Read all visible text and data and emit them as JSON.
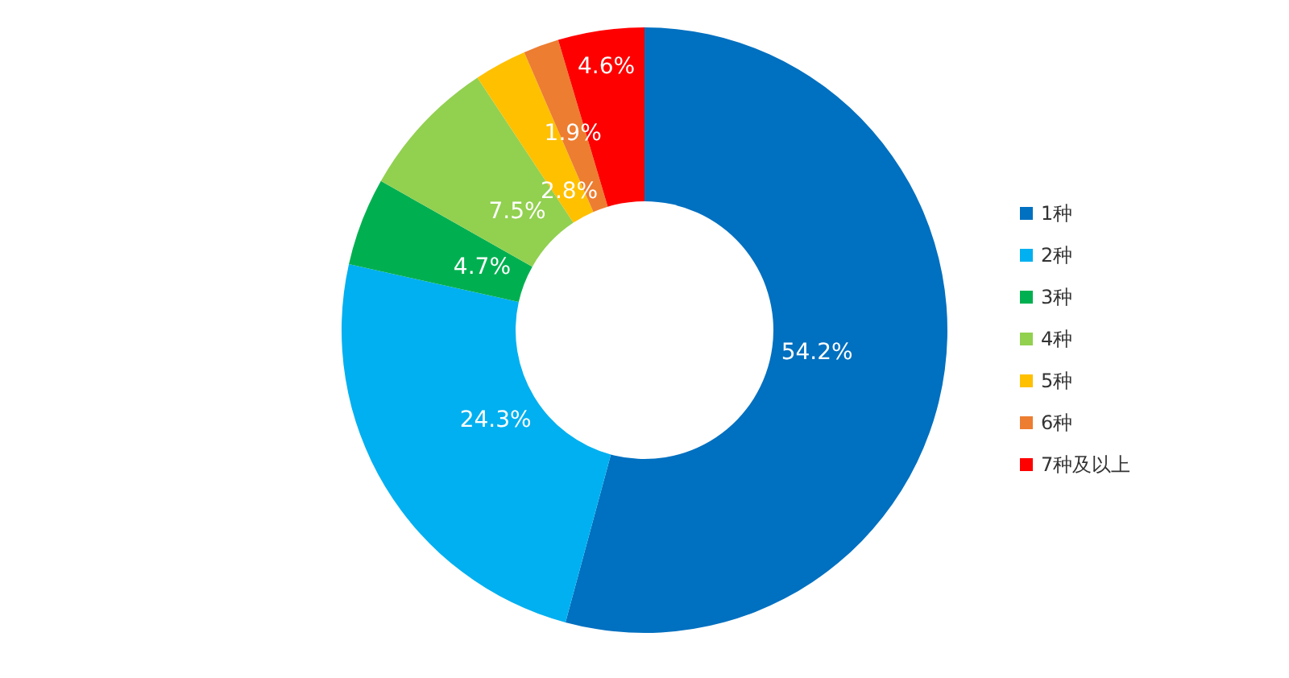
{
  "chart_data": {
    "type": "donut",
    "categories": [
      "1种",
      "2种",
      "3种",
      "4种",
      "5种",
      "6种",
      "7种及以上"
    ],
    "values": [
      54.2,
      24.3,
      4.7,
      7.5,
      2.8,
      1.9,
      4.6
    ],
    "colors": [
      "#0070c0",
      "#00b0f0",
      "#00b050",
      "#92d050",
      "#ffc000",
      "#ed7d31",
      "#ff0000"
    ],
    "value_labels": [
      "54.2%",
      "24.3%",
      "4.7%",
      "7.5%",
      "2.8%",
      "1.9%",
      "4.6%"
    ],
    "legend": "right"
  }
}
